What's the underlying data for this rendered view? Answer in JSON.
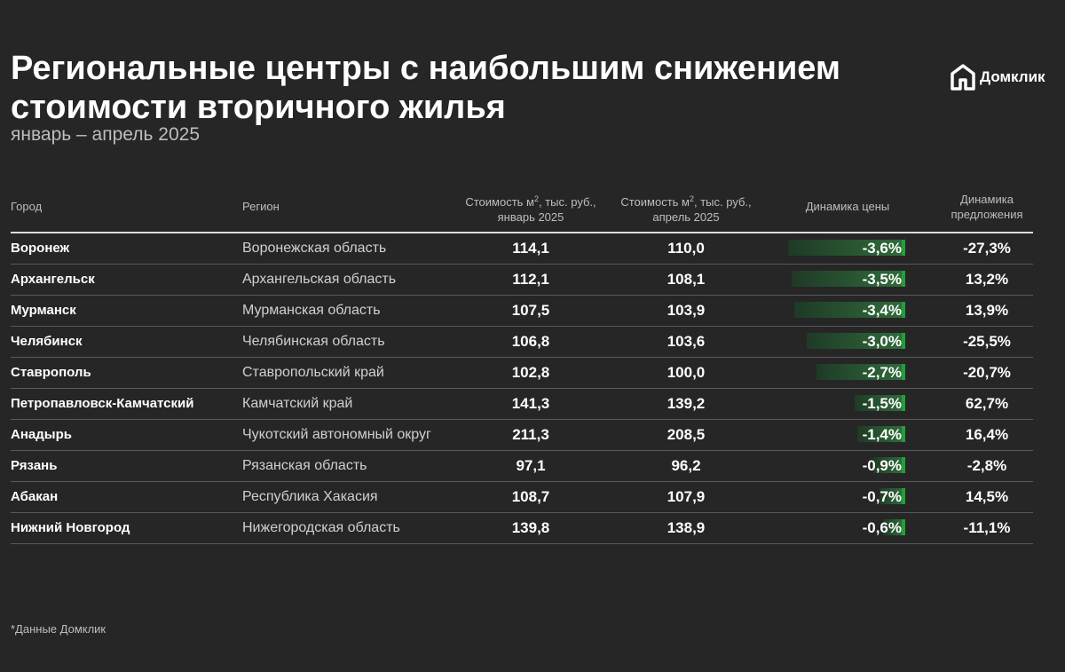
{
  "title": "Региональные центры с наибольшим снижением стоимости вторичного жилья",
  "subtitle": "январь – апрель 2025",
  "logo": {
    "text": "Домклик",
    "icon": "house-logo-icon"
  },
  "columns": {
    "city": "Город",
    "region": "Регион",
    "jan_line1": "Стоимость м",
    "jan_sup": "2",
    "jan_line1_end": ", тыс. руб.,",
    "jan_line2": "январь 2025",
    "apr_line1": "Стоимость м",
    "apr_sup": "2",
    "apr_line1_end": ", тыс. руб.,",
    "apr_line2": "апрель 2025",
    "dynamics": "Динамика цены",
    "supply_line1": "Динамика",
    "supply_line2": "предложения"
  },
  "colors": {
    "background": "#262626",
    "bar_accent": "#21a038",
    "bar_fill": "#2f6b3a"
  },
  "footnote": "*Данные Домклик",
  "chart_data": {
    "type": "table",
    "rows": [
      {
        "city": "Воронеж",
        "region": "Воронежская область",
        "jan": "114,1",
        "apr": "110,0",
        "dynamics": "-3,6%",
        "dynamics_value": -3.6,
        "supply": "-27,3%"
      },
      {
        "city": "Архангельск",
        "region": "Архангельская область",
        "jan": "112,1",
        "apr": "108,1",
        "dynamics": "-3,5%",
        "dynamics_value": -3.5,
        "supply": "13,2%"
      },
      {
        "city": "Мурманск",
        "region": "Мурманская область",
        "jan": "107,5",
        "apr": "103,9",
        "dynamics": "-3,4%",
        "dynamics_value": -3.4,
        "supply": "13,9%"
      },
      {
        "city": "Челябинск",
        "region": "Челябинская область",
        "jan": "106,8",
        "apr": "103,6",
        "dynamics": "-3,0%",
        "dynamics_value": -3.0,
        "supply": "-25,5%"
      },
      {
        "city": "Ставрополь",
        "region": "Ставропольский край",
        "jan": "102,8",
        "apr": "100,0",
        "dynamics": "-2,7%",
        "dynamics_value": -2.7,
        "supply": "-20,7%"
      },
      {
        "city": "Петропавловск-Камчатский",
        "region": "Камчатский край",
        "jan": "141,3",
        "apr": "139,2",
        "dynamics": "-1,5%",
        "dynamics_value": -1.5,
        "supply": "62,7%"
      },
      {
        "city": "Анадырь",
        "region": "Чукотский автономный округ",
        "jan": "211,3",
        "apr": "208,5",
        "dynamics": "-1,4%",
        "dynamics_value": -1.4,
        "supply": "16,4%"
      },
      {
        "city": "Рязань",
        "region": "Рязанская область",
        "jan": "97,1",
        "apr": "96,2",
        "dynamics": "-0,9%",
        "dynamics_value": -0.9,
        "supply": "-2,8%"
      },
      {
        "city": "Абакан",
        "region": "Республика Хакасия",
        "jan": "108,7",
        "apr": "107,9",
        "dynamics": "-0,7%",
        "dynamics_value": -0.7,
        "supply": "14,5%"
      },
      {
        "city": "Нижний Новгород",
        "region": "Нижегородская область",
        "jan": "139,8",
        "apr": "138,9",
        "dynamics": "-0,6%",
        "dynamics_value": -0.6,
        "supply": "-11,1%"
      }
    ]
  }
}
